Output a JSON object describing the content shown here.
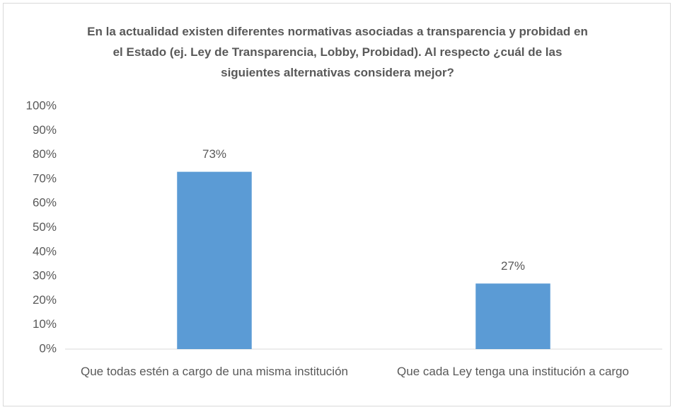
{
  "chart_data": {
    "type": "bar",
    "title": "En la actualidad existen diferentes normativas asociadas a transparencia y probidad en el Estado (ej. Ley de Transparencia, Lobby,  Probidad). Al respecto ¿cuál de las siguientes alternativas considera mejor?",
    "categories": [
      "Que todas estén a cargo de una misma institución",
      "Que cada Ley tenga una institución a cargo"
    ],
    "values": [
      73,
      27
    ],
    "value_labels": [
      "73%",
      "27%"
    ],
    "color": "#5b9bd5",
    "ylim": [
      0,
      100
    ],
    "yticks": [
      {
        "value": 0,
        "label": "0%"
      },
      {
        "value": 10,
        "label": "10%"
      },
      {
        "value": 20,
        "label": "20%"
      },
      {
        "value": 30,
        "label": "30%"
      },
      {
        "value": 40,
        "label": "40%"
      },
      {
        "value": 50,
        "label": "50%"
      },
      {
        "value": 60,
        "label": "60%"
      },
      {
        "value": 70,
        "label": "70%"
      },
      {
        "value": 80,
        "label": "80%"
      },
      {
        "value": 90,
        "label": "90%"
      },
      {
        "value": 100,
        "label": "100%"
      }
    ],
    "grid": false
  }
}
